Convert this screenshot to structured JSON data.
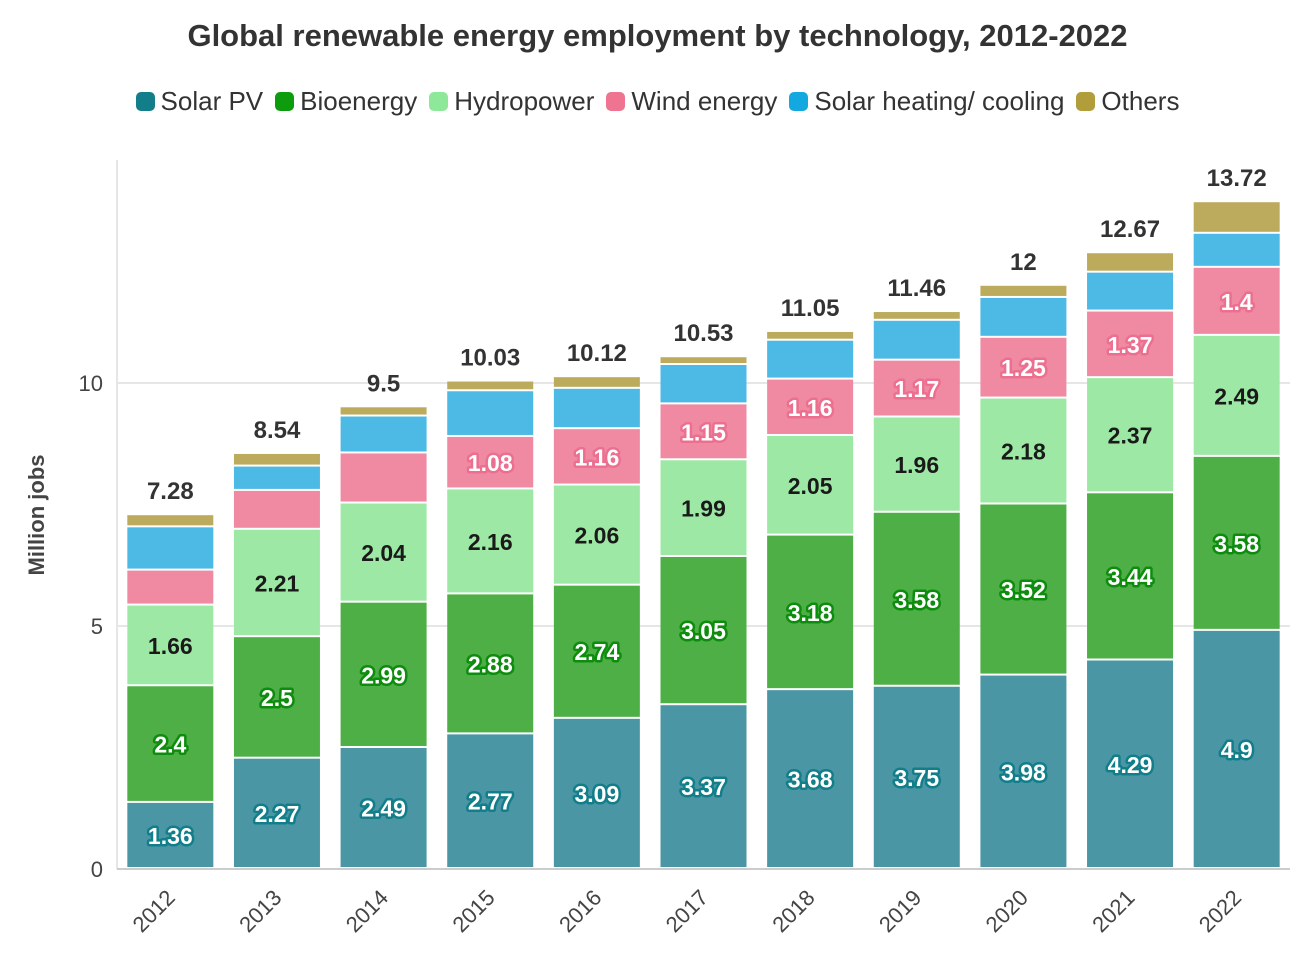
{
  "chart_data": {
    "type": "bar",
    "stacked": true,
    "title": "Global renewable energy employment by technology, 2012-2022",
    "ylabel": "Million jobs",
    "xlabel": "",
    "ylim": [
      0,
      14.5
    ],
    "yticks": [
      0,
      5,
      10
    ],
    "grid": true,
    "legend_position": "top",
    "categories": [
      "2012",
      "2013",
      "2014",
      "2015",
      "2016",
      "2017",
      "2018",
      "2019",
      "2020",
      "2021",
      "2022"
    ],
    "series": [
      {
        "name": "Solar PV",
        "color": "#4a96a5",
        "legend_color": "#117e8a",
        "label_color": "#ffffff",
        "label_stroke": "#117e8a",
        "values": [
          1.36,
          2.27,
          2.49,
          2.77,
          3.09,
          3.37,
          3.68,
          3.75,
          3.98,
          4.29,
          4.9
        ],
        "labels": [
          "1.36",
          "2.27",
          "2.49",
          "2.77",
          "3.09",
          "3.37",
          "3.68",
          "3.75",
          "3.98",
          "4.29",
          "4.9"
        ]
      },
      {
        "name": "Bioenergy",
        "color": "#4daf45",
        "legend_color": "#0d9c0d",
        "label_color": "#ffffff",
        "label_stroke": "#0d8c0d",
        "values": [
          2.4,
          2.5,
          2.99,
          2.88,
          2.74,
          3.05,
          3.18,
          3.58,
          3.52,
          3.44,
          3.58
        ],
        "labels": [
          "2.4",
          "2.5",
          "2.99",
          "2.88",
          "2.74",
          "3.05",
          "3.18",
          "3.58",
          "3.52",
          "3.44",
          "3.58"
        ]
      },
      {
        "name": "Hydropower",
        "color": "#9ee8a6",
        "legend_color": "#8ee89a",
        "label_color": "#1a1a1a",
        "label_stroke": "#9ee8a6",
        "values": [
          1.66,
          2.21,
          2.04,
          2.16,
          2.06,
          1.99,
          2.05,
          1.96,
          2.18,
          2.37,
          2.49
        ],
        "labels": [
          "1.66",
          "2.21",
          "2.04",
          "2.16",
          "2.06",
          "1.99",
          "2.05",
          "1.96",
          "2.18",
          "2.37",
          "2.49"
        ]
      },
      {
        "name": "Wind energy",
        "color": "#ef8aa2",
        "legend_color": "#ee7491",
        "label_color": "#ffffff",
        "label_stroke": "#ec6f8f",
        "values": [
          0.72,
          0.8,
          1.03,
          1.08,
          1.16,
          1.15,
          1.16,
          1.17,
          1.25,
          1.37,
          1.4
        ],
        "labels": [
          "",
          "",
          "",
          "1.08",
          "1.16",
          "1.15",
          "1.16",
          "1.17",
          "1.25",
          "1.37",
          "1.4"
        ]
      },
      {
        "name": "Solar heating/ cooling",
        "color": "#4db9e5",
        "legend_color": "#13a8e0",
        "label_color": "#ffffff",
        "label_stroke": "#13a8e0",
        "values": [
          0.89,
          0.5,
          0.76,
          0.94,
          0.83,
          0.81,
          0.8,
          0.82,
          0.82,
          0.8,
          0.7
        ],
        "labels": [
          "",
          "",
          "",
          "",
          "",
          "",
          "",
          "",
          "",
          "",
          ""
        ]
      },
      {
        "name": "Others",
        "color": "#bcab5d",
        "legend_color": "#b19d3a",
        "label_color": "#ffffff",
        "label_stroke": "#b19d3a",
        "values": [
          0.25,
          0.26,
          0.19,
          0.2,
          0.24,
          0.16,
          0.18,
          0.18,
          0.25,
          0.4,
          0.65
        ],
        "labels": [
          "",
          "",
          "",
          "",
          "",
          "",
          "",
          "",
          "",
          "",
          ""
        ]
      }
    ],
    "totals": [
      "7.28",
      "8.54",
      "9.5",
      "10.03",
      "10.12",
      "10.53",
      "11.05",
      "11.46",
      "12",
      "12.67",
      "13.72"
    ],
    "total_values": [
      7.28,
      8.54,
      9.5,
      10.03,
      10.12,
      10.53,
      11.05,
      11.46,
      12,
      12.67,
      13.72
    ]
  }
}
